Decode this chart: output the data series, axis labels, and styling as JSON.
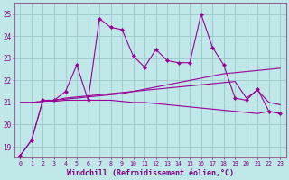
{
  "background_color": "#c0e8e8",
  "grid_color": "#a0cccc",
  "line_color": "#990099",
  "x": [
    0,
    1,
    2,
    3,
    4,
    5,
    6,
    7,
    8,
    9,
    10,
    11,
    12,
    13,
    14,
    15,
    16,
    17,
    18,
    19,
    20,
    21,
    22,
    23
  ],
  "series1": [
    18.6,
    19.3,
    21.1,
    21.1,
    21.5,
    22.7,
    21.1,
    24.8,
    24.4,
    24.3,
    23.1,
    22.6,
    23.4,
    22.9,
    22.8,
    22.8,
    25.0,
    23.5,
    22.7,
    21.2,
    21.1,
    21.6,
    20.6,
    20.5
  ],
  "series2": [
    18.6,
    19.3,
    21.1,
    21.05,
    21.1,
    21.1,
    21.1,
    21.1,
    21.1,
    21.05,
    21.0,
    21.0,
    20.95,
    20.9,
    20.85,
    20.8,
    20.75,
    20.7,
    20.65,
    20.6,
    20.55,
    20.5,
    20.6,
    20.5
  ],
  "series3": [
    21.0,
    21.0,
    21.05,
    21.1,
    21.2,
    21.25,
    21.3,
    21.35,
    21.4,
    21.45,
    21.5,
    21.55,
    21.6,
    21.65,
    21.7,
    21.75,
    21.8,
    21.85,
    21.9,
    21.95,
    21.2,
    21.55,
    21.0,
    20.9
  ],
  "series4": [
    21.0,
    21.0,
    21.05,
    21.1,
    21.15,
    21.2,
    21.25,
    21.3,
    21.35,
    21.4,
    21.5,
    21.6,
    21.7,
    21.8,
    21.9,
    22.0,
    22.1,
    22.2,
    22.3,
    22.35,
    22.4,
    22.45,
    22.5,
    22.55
  ],
  "ylim": [
    18.5,
    25.5
  ],
  "yticks": [
    19,
    20,
    21,
    22,
    23,
    24,
    25
  ],
  "xticks": [
    0,
    1,
    2,
    3,
    4,
    5,
    6,
    7,
    8,
    9,
    10,
    11,
    12,
    13,
    14,
    15,
    16,
    17,
    18,
    19,
    20,
    21,
    22,
    23
  ],
  "xlabel": "Windchill (Refroidissement éolien,°C)"
}
